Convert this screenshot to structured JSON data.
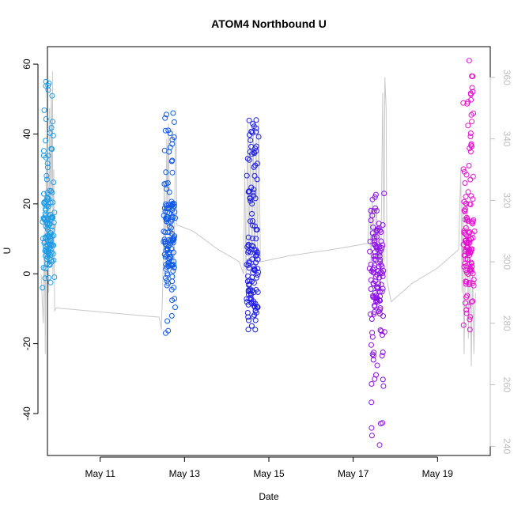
{
  "chart_data": {
    "type": "scatter",
    "title": "ATOM4 Northbound U",
    "xlabel": "Date",
    "ylabel": "U",
    "x_ticks": [
      {
        "label": "May 11",
        "day": 11
      },
      {
        "label": "May 13",
        "day": 13
      },
      {
        "label": "May 15",
        "day": 15
      },
      {
        "label": "May 17",
        "day": 17
      },
      {
        "label": "May 19",
        "day": 19
      }
    ],
    "xlim_days": [
      9.75,
      20.25
    ],
    "ylim": [
      -52,
      65
    ],
    "y_ticks": [
      -40,
      -20,
      0,
      20,
      40,
      60
    ],
    "y2lim": [
      237,
      370
    ],
    "y2_ticks": [
      240,
      260,
      280,
      300,
      320,
      340,
      360
    ],
    "y2_color": "#bebebe",
    "grid": false,
    "legend": "none",
    "point_style": "open-circle",
    "clusters": [
      {
        "color": "#1e9be6",
        "x_start": 9.62,
        "x_end": 9.93,
        "u_min": -4,
        "u_max": 55,
        "u_center": 12
      },
      {
        "color": "#0f5ae6",
        "x_start": 12.45,
        "x_end": 12.82,
        "u_min": -17,
        "u_max": 46,
        "u_center": 10
      },
      {
        "color": "#1e1ee6",
        "x_start": 14.45,
        "x_end": 14.78,
        "u_min": -16,
        "u_max": 44,
        "u_center": -2
      },
      {
        "color": "#8c0fe6",
        "x_start": 17.35,
        "x_end": 17.78,
        "u_min": -49,
        "u_max": 23,
        "u_center": 0
      },
      {
        "color": "#e60fd2",
        "x_start": 19.58,
        "x_end": 19.9,
        "u_min": -16,
        "u_max": 61,
        "u_center": 8
      }
    ],
    "secondary_line": {
      "color": "#c8c8c8",
      "points": [
        [
          9.6,
          296
        ],
        [
          9.65,
          280
        ],
        [
          9.68,
          310
        ],
        [
          9.7,
          270
        ],
        [
          9.72,
          330
        ],
        [
          9.74,
          300
        ],
        [
          9.76,
          340
        ],
        [
          9.78,
          290
        ],
        [
          9.8,
          350
        ],
        [
          9.82,
          310
        ],
        [
          9.84,
          355
        ],
        [
          9.86,
          320
        ],
        [
          9.87,
          362
        ],
        [
          9.88,
          295
        ],
        [
          9.9,
          330
        ],
        [
          9.91,
          300
        ],
        [
          9.92,
          284
        ],
        [
          9.95,
          285
        ],
        [
          12.4,
          282
        ],
        [
          12.45,
          278
        ],
        [
          12.48,
          290
        ],
        [
          12.5,
          305
        ],
        [
          12.52,
          325
        ],
        [
          12.55,
          300
        ],
        [
          12.58,
          340
        ],
        [
          12.6,
          315
        ],
        [
          12.62,
          345
        ],
        [
          12.65,
          305
        ],
        [
          12.7,
          320
        ],
        [
          12.75,
          295
        ],
        [
          12.78,
          335
        ],
        [
          12.8,
          342
        ],
        [
          12.82,
          312
        ],
        [
          13.2,
          310
        ],
        [
          13.8,
          304
        ],
        [
          14.3,
          300
        ],
        [
          14.4,
          296
        ],
        [
          14.43,
          330
        ],
        [
          14.46,
          292
        ],
        [
          14.5,
          345
        ],
        [
          14.53,
          298
        ],
        [
          14.56,
          340
        ],
        [
          14.6,
          300
        ],
        [
          14.63,
          345
        ],
        [
          14.66,
          296
        ],
        [
          14.7,
          340
        ],
        [
          14.73,
          300
        ],
        [
          14.76,
          346
        ],
        [
          14.8,
          300
        ],
        [
          15.5,
          302
        ],
        [
          16.5,
          304
        ],
        [
          17.35,
          306
        ],
        [
          17.38,
          315
        ],
        [
          17.4,
          318
        ],
        [
          17.42,
          300
        ],
        [
          17.45,
          320
        ],
        [
          17.5,
          305
        ],
        [
          17.55,
          318
        ],
        [
          17.6,
          300
        ],
        [
          17.62,
          310
        ],
        [
          17.65,
          290
        ],
        [
          17.7,
          355
        ],
        [
          17.73,
          300
        ],
        [
          17.75,
          360
        ],
        [
          17.78,
          350
        ],
        [
          17.8,
          294
        ],
        [
          17.9,
          287
        ],
        [
          18.4,
          293
        ],
        [
          19.0,
          298
        ],
        [
          19.5,
          304
        ],
        [
          19.55,
          330
        ],
        [
          19.58,
          290
        ],
        [
          19.6,
          320
        ],
        [
          19.63,
          270
        ],
        [
          19.66,
          300
        ],
        [
          19.7,
          320
        ],
        [
          19.73,
          275
        ],
        [
          19.76,
          310
        ],
        [
          19.8,
          266
        ],
        [
          19.83,
          300
        ],
        [
          19.86,
          270
        ],
        [
          19.9,
          290
        ]
      ]
    }
  }
}
